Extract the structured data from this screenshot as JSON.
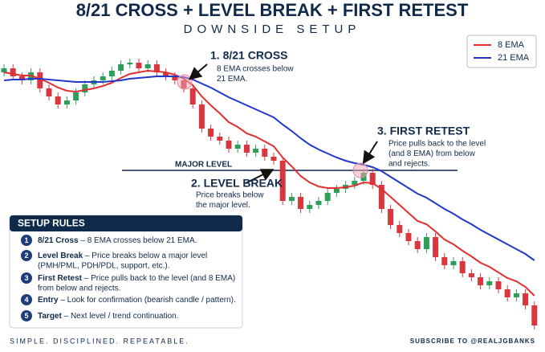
{
  "chart_data": {
    "type": "candlestick",
    "title": "8/21 CROSS + LEVEL BREAK + FIRST RETEST",
    "subtitle": "DOWNSIDE SETUP",
    "ylim": [
      0,
      360
    ],
    "up_color": "#2e9e5b",
    "down_color": "#d9363e",
    "opens": [
      330,
      335,
      325,
      320,
      330,
      310,
      300,
      290,
      295,
      305,
      315,
      320,
      325,
      332,
      340,
      342,
      335,
      340,
      330,
      325,
      320,
      310,
      290,
      260,
      250,
      245,
      235,
      240,
      230,
      235,
      225,
      220,
      170,
      175,
      160,
      165,
      170,
      180,
      185,
      190,
      195,
      205,
      190,
      160,
      140,
      130,
      120,
      110,
      125,
      100,
      90,
      95,
      80,
      75,
      65,
      70,
      60,
      50,
      55,
      40
    ],
    "closes": [
      335,
      325,
      320,
      330,
      310,
      300,
      290,
      295,
      305,
      315,
      320,
      325,
      332,
      340,
      342,
      335,
      340,
      330,
      325,
      320,
      310,
      290,
      260,
      250,
      245,
      235,
      240,
      230,
      235,
      225,
      220,
      170,
      175,
      160,
      165,
      170,
      180,
      185,
      190,
      195,
      205,
      190,
      160,
      140,
      130,
      120,
      110,
      125,
      100,
      90,
      95,
      80,
      75,
      65,
      70,
      60,
      50,
      55,
      40,
      15
    ],
    "series": [
      {
        "name": "8 EMA",
        "color": "#e0302f",
        "values": [
          330,
          328,
          326,
          326,
          322,
          317,
          311,
          307,
          306,
          308,
          310,
          313,
          317,
          323,
          328,
          330,
          332,
          331,
          330,
          327,
          322,
          314,
          300,
          289,
          279,
          268,
          262,
          254,
          250,
          244,
          238,
          224,
          213,
          201,
          193,
          188,
          186,
          186,
          187,
          189,
          193,
          192,
          185,
          175,
          165,
          155,
          145,
          141,
          132,
          122,
          116,
          108,
          101,
          93,
          88,
          81,
          74,
          70,
          63,
          52
        ]
      },
      {
        "name": "21 EMA",
        "color": "#2337c9",
        "values": [
          320,
          321,
          321,
          322,
          322,
          321,
          320,
          319,
          318,
          318,
          318,
          318,
          319,
          320,
          322,
          323,
          324,
          325,
          325,
          325,
          324,
          321,
          316,
          311,
          305,
          299,
          294,
          289,
          284,
          279,
          274,
          265,
          257,
          248,
          240,
          234,
          229,
          224,
          220,
          217,
          215,
          212,
          207,
          200,
          193,
          186,
          179,
          174,
          167,
          160,
          154,
          147,
          141,
          134,
          128,
          122,
          116,
          110,
          104,
          96
        ]
      }
    ],
    "major_level": {
      "label": "MAJOR LEVEL",
      "value": 208
    },
    "annotations": [
      {
        "title": "1. 8/21 CROSS",
        "lines": [
          "8 EMA crosses below",
          "21 EMA."
        ]
      },
      {
        "title": "2. LEVEL BREAK",
        "lines": [
          "Price breaks below",
          "the major level."
        ]
      },
      {
        "title": "3. FIRST RETEST",
        "lines": [
          "Price pulls back to the level",
          "(and 8 EMA) from below",
          "and rejects."
        ]
      }
    ],
    "rules": {
      "title": "SETUP RULES",
      "items": [
        {
          "num": "1",
          "term": "8/21 Cross",
          "lines": [
            " – 8 EMA crosses below 21 EMA."
          ]
        },
        {
          "num": "2",
          "term": "Level Break",
          "lines": [
            " – Price breaks below a major level",
            "(PMH/PML, PDH/PDL, support, etc.)."
          ]
        },
        {
          "num": "3",
          "term": "First Retest",
          "lines": [
            " – Price pulls back to the level (and 8 EMA)",
            "from below and rejects."
          ]
        },
        {
          "num": "4",
          "term": "Entry",
          "lines": [
            " – Look for confirmation (bearish candle / pattern)."
          ]
        },
        {
          "num": "5",
          "term": "Target",
          "lines": [
            " – Next level / trend continuation."
          ]
        }
      ]
    },
    "footer_left": "SIMPLE. DISCIPLINED. REPEATABLE.",
    "footer_right": "SUBSCRIBE TO @REALJGBANKS"
  }
}
